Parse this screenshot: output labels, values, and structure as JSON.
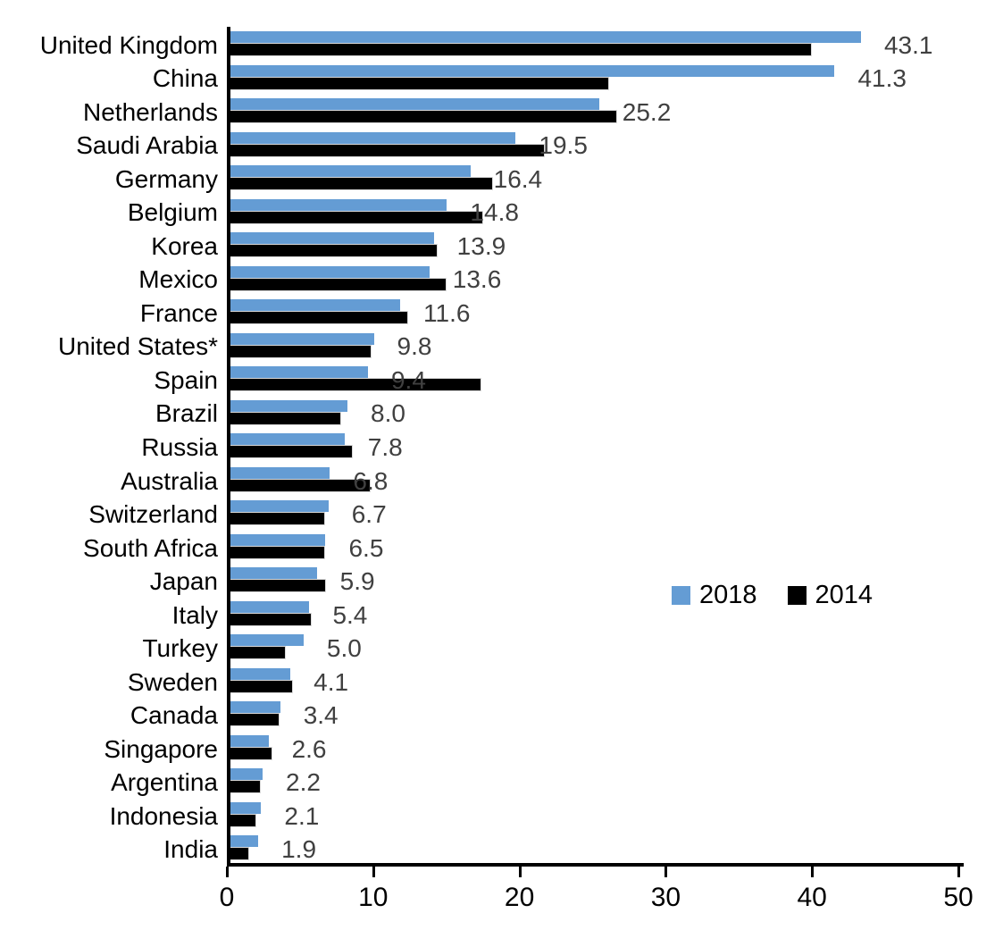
{
  "chart_data": {
    "type": "bar",
    "orientation": "horizontal",
    "title": "",
    "xlabel": "",
    "ylabel": "",
    "xlim": [
      0,
      50
    ],
    "x_ticks": [
      "0",
      "10",
      "20",
      "30",
      "40",
      "50"
    ],
    "grid": false,
    "legend_position": "center-right",
    "categories": [
      "United Kingdom",
      "China",
      "Netherlands",
      "Saudi Arabia",
      "Germany",
      "Belgium",
      "Korea",
      "Mexico",
      "France",
      "United States*",
      "Spain",
      "Brazil",
      "Russia",
      "Australia",
      "Switzerland",
      "South Africa",
      "Japan",
      "Italy",
      "Turkey",
      "Sweden",
      "Canada",
      "Singapore",
      "Argentina",
      "Indonesia",
      "India"
    ],
    "series": [
      {
        "name": "2018",
        "color": "#649CD4",
        "values": [
          43.1,
          41.3,
          25.2,
          19.5,
          16.4,
          14.8,
          13.9,
          13.6,
          11.6,
          9.8,
          9.4,
          8.0,
          7.8,
          6.8,
          6.7,
          6.5,
          5.9,
          5.4,
          5.0,
          4.1,
          3.4,
          2.6,
          2.2,
          2.1,
          1.9
        ]
      },
      {
        "name": "2014",
        "color": "#000000",
        "values": [
          39.7,
          25.8,
          26.4,
          21.4,
          17.9,
          17.2,
          14.1,
          14.7,
          12.1,
          9.6,
          17.1,
          7.5,
          8.3,
          9.5,
          6.4,
          6.4,
          6.5,
          5.5,
          3.7,
          4.2,
          3.3,
          2.8,
          2.0,
          1.7,
          1.2
        ]
      }
    ],
    "data_labels": [
      "43.1",
      "41.3",
      "25.2",
      "19.5",
      "16.4",
      "14.8",
      "13.9",
      "13.6",
      "11.6",
      "9.8",
      "9.4",
      "8.0",
      "7.8",
      "6.8",
      "6.7",
      "6.5",
      "5.9",
      "5.4",
      "5.0",
      "4.1",
      "3.4",
      "2.6",
      "2.2",
      "2.1",
      "1.9"
    ],
    "data_label_color": "#404040"
  },
  "legend": {
    "items": [
      {
        "label": "2018",
        "color": "#649CD4"
      },
      {
        "label": "2014",
        "color": "#000000"
      }
    ]
  }
}
